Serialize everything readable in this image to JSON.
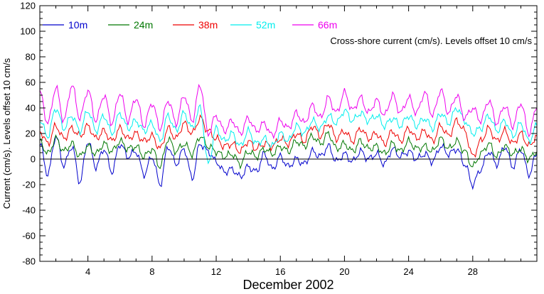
{
  "chart_data": {
    "type": "line",
    "title": "Cross-shore current (cm/s). Levels offset 10 cm/s",
    "xlabel": "December 2002",
    "ylabel": "Current (cm/s). Levels offset 10 cm/s",
    "xlim": [
      1,
      32
    ],
    "ylim": [
      -80,
      120
    ],
    "x_ticks": [
      4,
      8,
      12,
      16,
      20,
      24,
      28
    ],
    "y_ticks": [
      -80,
      -60,
      -40,
      -20,
      0,
      20,
      40,
      60,
      80,
      100,
      120
    ],
    "grid": false,
    "legend": "top",
    "x_unit": "day of December 2002",
    "series": [
      {
        "name": "10m",
        "color": "#0000cc",
        "offset": 0,
        "x": [
          1,
          1.5,
          2,
          2.5,
          3,
          3.5,
          4,
          4.5,
          5,
          5.5,
          6,
          6.5,
          7,
          7.5,
          8,
          8.5,
          9,
          9.5,
          10,
          10.5,
          11,
          11.5,
          12,
          12.5,
          13,
          13.5,
          14,
          14.5,
          15,
          15.5,
          16,
          16.5,
          17,
          17.5,
          18,
          18.5,
          19,
          19.5,
          20,
          20.5,
          21,
          21.5,
          22,
          22.5,
          23,
          23.5,
          24,
          24.5,
          25,
          25.5,
          26,
          26.5,
          27,
          27.5,
          28,
          28.5,
          29,
          29.5,
          30,
          30.5,
          31,
          31.5,
          32
        ],
        "values": [
          12,
          -12,
          18,
          -5,
          10,
          -18,
          14,
          -6,
          8,
          -10,
          12,
          2,
          6,
          -12,
          2,
          -20,
          10,
          -4,
          8,
          -15,
          12,
          6,
          -2,
          -10,
          -8,
          -14,
          -6,
          -10,
          4,
          -8,
          2,
          -6,
          0,
          -4,
          6,
          2,
          10,
          -2,
          4,
          -2,
          6,
          0,
          4,
          -4,
          8,
          2,
          6,
          0,
          4,
          -2,
          10,
          4,
          8,
          -4,
          -20,
          -8,
          6,
          -4,
          10,
          -6,
          8,
          -12,
          4
        ]
      },
      {
        "name": "24m",
        "color": "#007700",
        "offset": 10,
        "x": [
          1,
          1.5,
          2,
          2.5,
          3,
          3.5,
          4,
          4.5,
          5,
          5.5,
          6,
          6.5,
          7,
          7.5,
          8,
          8.5,
          9,
          9.5,
          10,
          10.5,
          11,
          11.5,
          12,
          12.5,
          13,
          13.5,
          14,
          14.5,
          15,
          15.5,
          16,
          16.5,
          17,
          17.5,
          18,
          18.5,
          19,
          19.5,
          20,
          20.5,
          21,
          21.5,
          22,
          22.5,
          23,
          23.5,
          24,
          24.5,
          25,
          25.5,
          26,
          26.5,
          27,
          27.5,
          28,
          28.5,
          29,
          29.5,
          30,
          30.5,
          31,
          31.5,
          32
        ],
        "values": [
          14,
          4,
          16,
          6,
          12,
          2,
          10,
          4,
          12,
          6,
          14,
          8,
          10,
          2,
          8,
          -6,
          16,
          6,
          12,
          4,
          18,
          10,
          6,
          2,
          4,
          -4,
          6,
          2,
          8,
          4,
          10,
          6,
          14,
          10,
          18,
          12,
          20,
          8,
          12,
          6,
          14,
          8,
          10,
          4,
          12,
          6,
          14,
          8,
          10,
          6,
          16,
          8,
          14,
          6,
          -6,
          4,
          12,
          2,
          10,
          4,
          8,
          0,
          6
        ]
      },
      {
        "name": "38m",
        "color": "#ee0000",
        "offset": 20,
        "x": [
          1,
          1.5,
          2,
          2.5,
          3,
          3.5,
          4,
          4.5,
          5,
          5.5,
          6,
          6.5,
          7,
          7.5,
          8,
          8.5,
          9,
          9.5,
          10,
          10.5,
          11,
          11.5,
          12,
          12.5,
          13,
          13.5,
          14,
          14.5,
          15,
          15.5,
          16,
          16.5,
          17,
          17.5,
          18,
          18.5,
          19,
          19.5,
          20,
          20.5,
          21,
          21.5,
          22,
          22.5,
          23,
          23.5,
          24,
          24.5,
          25,
          25.5,
          26,
          26.5,
          27,
          27.5,
          28,
          28.5,
          29,
          29.5,
          30,
          30.5,
          31,
          31.5,
          32
        ],
        "values": [
          22,
          12,
          26,
          16,
          24,
          18,
          26,
          16,
          22,
          14,
          24,
          16,
          20,
          14,
          18,
          8,
          24,
          16,
          28,
          20,
          32,
          22,
          16,
          10,
          12,
          6,
          14,
          8,
          12,
          10,
          16,
          12,
          20,
          14,
          26,
          18,
          28,
          16,
          22,
          14,
          24,
          16,
          20,
          12,
          22,
          14,
          24,
          16,
          22,
          14,
          26,
          18,
          30,
          22,
          2,
          14,
          24,
          14,
          22,
          12,
          20,
          10,
          18
        ]
      },
      {
        "name": "52m",
        "color": "#00eeee",
        "offset": 30,
        "x": [
          1,
          1.5,
          2,
          2.5,
          3,
          3.5,
          4,
          4.5,
          5,
          5.5,
          6,
          6.5,
          7,
          7.5,
          8,
          8.5,
          9,
          9.5,
          10,
          10.5,
          11,
          11.5,
          12,
          12.5,
          13,
          13.5,
          14,
          14.5,
          15,
          15.5,
          16,
          16.5,
          17,
          17.5,
          18,
          18.5,
          19,
          19.5,
          20,
          20.5,
          21,
          21.5,
          22,
          22.5,
          23,
          23.5,
          24,
          24.5,
          25,
          25.5,
          26,
          26.5,
          27,
          27.5,
          28,
          28.5,
          29,
          29.5,
          30,
          30.5,
          31,
          31.5,
          32
        ],
        "values": [
          30,
          18,
          40,
          24,
          34,
          22,
          38,
          22,
          34,
          20,
          36,
          24,
          30,
          22,
          28,
          14,
          34,
          22,
          36,
          24,
          40,
          -4,
          24,
          14,
          20,
          10,
          22,
          12,
          16,
          10,
          20,
          14,
          26,
          20,
          30,
          24,
          34,
          28,
          38,
          30,
          36,
          30,
          34,
          26,
          32,
          26,
          34,
          26,
          32,
          24,
          36,
          28,
          40,
          30,
          20,
          24,
          34,
          22,
          30,
          18,
          28,
          14,
          26
        ]
      },
      {
        "name": "66m",
        "color": "#ee00ee",
        "offset": 40,
        "x": [
          1,
          1.5,
          2,
          2.5,
          3,
          3.5,
          4,
          4.5,
          5,
          5.5,
          6,
          6.5,
          7,
          7.5,
          8,
          8.5,
          9,
          9.5,
          10,
          10.5,
          11,
          11.5,
          12,
          12.5,
          13,
          13.5,
          14,
          14.5,
          15,
          15.5,
          16,
          16.5,
          17,
          17.5,
          18,
          18.5,
          19,
          19.5,
          20,
          20.5,
          21,
          21.5,
          22,
          22.5,
          23,
          23.5,
          24,
          24.5,
          25,
          25.5,
          26,
          26.5,
          27,
          27.5,
          28,
          28.5,
          29,
          29.5,
          30,
          30.5,
          31,
          31.5,
          32
        ],
        "values": [
          52,
          28,
          56,
          30,
          58,
          32,
          54,
          30,
          50,
          28,
          52,
          30,
          48,
          26,
          44,
          24,
          46,
          28,
          50,
          30,
          58,
          20,
          34,
          22,
          30,
          20,
          32,
          22,
          28,
          18,
          30,
          24,
          36,
          28,
          42,
          32,
          48,
          36,
          52,
          38,
          48,
          36,
          46,
          34,
          50,
          36,
          48,
          36,
          52,
          34,
          54,
          36,
          50,
          32,
          40,
          30,
          46,
          28,
          42,
          26,
          44,
          20,
          40
        ]
      }
    ]
  }
}
